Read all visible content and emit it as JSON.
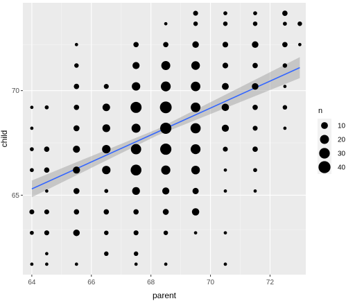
{
  "chart_data": {
    "type": "scatter",
    "xlabel": "parent",
    "ylabel": "child",
    "xlim": [
      63.7,
      73.2
    ],
    "ylim": [
      61.2,
      74.2
    ],
    "xticks": [
      64,
      66,
      68,
      70,
      72
    ],
    "yticks": [
      65,
      70
    ],
    "grid": true,
    "legend": {
      "title": "n",
      "placement": "right",
      "entries": [
        {
          "label": "10",
          "value": 10
        },
        {
          "label": "20",
          "value": 20
        },
        {
          "label": "30",
          "value": 30
        },
        {
          "label": "40",
          "value": 40
        }
      ]
    },
    "points": [
      {
        "x": 64.0,
        "y": 61.7,
        "n": 1
      },
      {
        "x": 64.0,
        "y": 63.2,
        "n": 2
      },
      {
        "x": 64.0,
        "y": 64.2,
        "n": 4
      },
      {
        "x": 64.0,
        "y": 66.2,
        "n": 2
      },
      {
        "x": 64.0,
        "y": 67.2,
        "n": 2
      },
      {
        "x": 64.0,
        "y": 68.2,
        "n": 1
      },
      {
        "x": 64.0,
        "y": 69.2,
        "n": 1
      },
      {
        "x": 64.5,
        "y": 61.7,
        "n": 1
      },
      {
        "x": 64.5,
        "y": 62.2,
        "n": 1
      },
      {
        "x": 64.5,
        "y": 63.2,
        "n": 4
      },
      {
        "x": 64.5,
        "y": 64.2,
        "n": 4
      },
      {
        "x": 64.5,
        "y": 65.2,
        "n": 1
      },
      {
        "x": 64.5,
        "y": 66.2,
        "n": 5
      },
      {
        "x": 64.5,
        "y": 67.2,
        "n": 5
      },
      {
        "x": 64.5,
        "y": 69.2,
        "n": 2
      },
      {
        "x": 65.5,
        "y": 61.7,
        "n": 1
      },
      {
        "x": 65.5,
        "y": 63.2,
        "n": 9
      },
      {
        "x": 65.5,
        "y": 64.2,
        "n": 5
      },
      {
        "x": 65.5,
        "y": 65.2,
        "n": 7
      },
      {
        "x": 65.5,
        "y": 66.2,
        "n": 11
      },
      {
        "x": 65.5,
        "y": 67.2,
        "n": 11
      },
      {
        "x": 65.5,
        "y": 68.2,
        "n": 7
      },
      {
        "x": 65.5,
        "y": 69.2,
        "n": 5
      },
      {
        "x": 65.5,
        "y": 70.2,
        "n": 5
      },
      {
        "x": 65.5,
        "y": 71.2,
        "n": 3
      },
      {
        "x": 65.5,
        "y": 72.2,
        "n": 1
      },
      {
        "x": 66.5,
        "y": 62.2,
        "n": 3
      },
      {
        "x": 66.5,
        "y": 63.2,
        "n": 3
      },
      {
        "x": 66.5,
        "y": 64.2,
        "n": 5
      },
      {
        "x": 66.5,
        "y": 65.2,
        "n": 2
      },
      {
        "x": 66.5,
        "y": 66.2,
        "n": 17
      },
      {
        "x": 66.5,
        "y": 67.2,
        "n": 17
      },
      {
        "x": 66.5,
        "y": 68.2,
        "n": 14
      },
      {
        "x": 66.5,
        "y": 69.2,
        "n": 13
      },
      {
        "x": 66.5,
        "y": 70.2,
        "n": 4
      },
      {
        "x": 67.5,
        "y": 61.7,
        "n": 1
      },
      {
        "x": 67.5,
        "y": 62.2,
        "n": 3
      },
      {
        "x": 67.5,
        "y": 63.2,
        "n": 4
      },
      {
        "x": 67.5,
        "y": 64.2,
        "n": 5
      },
      {
        "x": 67.5,
        "y": 65.2,
        "n": 14
      },
      {
        "x": 67.5,
        "y": 66.2,
        "n": 31
      },
      {
        "x": 67.5,
        "y": 67.2,
        "n": 28
      },
      {
        "x": 67.5,
        "y": 68.2,
        "n": 20
      },
      {
        "x": 67.5,
        "y": 69.2,
        "n": 33
      },
      {
        "x": 67.5,
        "y": 70.2,
        "n": 17
      },
      {
        "x": 67.5,
        "y": 71.2,
        "n": 11
      },
      {
        "x": 67.5,
        "y": 72.2,
        "n": 5
      },
      {
        "x": 68.5,
        "y": 61.7,
        "n": 1
      },
      {
        "x": 68.5,
        "y": 63.2,
        "n": 3
      },
      {
        "x": 68.5,
        "y": 64.2,
        "n": 7
      },
      {
        "x": 68.5,
        "y": 65.2,
        "n": 11
      },
      {
        "x": 68.5,
        "y": 66.2,
        "n": 21
      },
      {
        "x": 68.5,
        "y": 67.2,
        "n": 34
      },
      {
        "x": 68.5,
        "y": 68.2,
        "n": 34
      },
      {
        "x": 68.5,
        "y": 69.2,
        "n": 38
      },
      {
        "x": 68.5,
        "y": 70.2,
        "n": 25
      },
      {
        "x": 68.5,
        "y": 71.2,
        "n": 20
      },
      {
        "x": 68.5,
        "y": 72.2,
        "n": 5
      },
      {
        "x": 68.5,
        "y": 73.2,
        "n": 1
      },
      {
        "x": 69.5,
        "y": 63.2,
        "n": 1
      },
      {
        "x": 69.5,
        "y": 64.2,
        "n": 12
      },
      {
        "x": 69.5,
        "y": 65.2,
        "n": 8
      },
      {
        "x": 69.5,
        "y": 66.2,
        "n": 18
      },
      {
        "x": 69.5,
        "y": 67.2,
        "n": 25
      },
      {
        "x": 69.5,
        "y": 68.2,
        "n": 27
      },
      {
        "x": 69.5,
        "y": 69.2,
        "n": 24
      },
      {
        "x": 69.5,
        "y": 70.2,
        "n": 23
      },
      {
        "x": 69.5,
        "y": 71.2,
        "n": 18
      },
      {
        "x": 69.5,
        "y": 72.2,
        "n": 9
      },
      {
        "x": 69.5,
        "y": 73.2,
        "n": 3
      },
      {
        "x": 69.5,
        "y": 73.7,
        "n": 4
      },
      {
        "x": 70.5,
        "y": 61.7,
        "n": 1
      },
      {
        "x": 70.5,
        "y": 63.2,
        "n": 1
      },
      {
        "x": 70.5,
        "y": 65.2,
        "n": 1
      },
      {
        "x": 70.5,
        "y": 66.2,
        "n": 1
      },
      {
        "x": 70.5,
        "y": 67.2,
        "n": 4
      },
      {
        "x": 70.5,
        "y": 68.2,
        "n": 11
      },
      {
        "x": 70.5,
        "y": 69.2,
        "n": 12
      },
      {
        "x": 70.5,
        "y": 70.2,
        "n": 10
      },
      {
        "x": 70.5,
        "y": 71.2,
        "n": 6
      },
      {
        "x": 70.5,
        "y": 72.2,
        "n": 6
      },
      {
        "x": 70.5,
        "y": 73.2,
        "n": 3
      },
      {
        "x": 70.5,
        "y": 73.7,
        "n": 2
      },
      {
        "x": 71.5,
        "y": 65.2,
        "n": 1
      },
      {
        "x": 71.5,
        "y": 66.2,
        "n": 2
      },
      {
        "x": 71.5,
        "y": 67.2,
        "n": 5
      },
      {
        "x": 71.5,
        "y": 68.2,
        "n": 4
      },
      {
        "x": 71.5,
        "y": 69.2,
        "n": 5
      },
      {
        "x": 71.5,
        "y": 70.2,
        "n": 9
      },
      {
        "x": 71.5,
        "y": 71.2,
        "n": 5
      },
      {
        "x": 71.5,
        "y": 72.2,
        "n": 9
      },
      {
        "x": 71.5,
        "y": 73.2,
        "n": 3
      },
      {
        "x": 71.5,
        "y": 73.7,
        "n": 2
      },
      {
        "x": 72.5,
        "y": 68.2,
        "n": 1
      },
      {
        "x": 72.5,
        "y": 69.2,
        "n": 3
      },
      {
        "x": 72.5,
        "y": 70.2,
        "n": 1
      },
      {
        "x": 72.5,
        "y": 71.2,
        "n": 3
      },
      {
        "x": 72.5,
        "y": 72.2,
        "n": 5
      },
      {
        "x": 72.5,
        "y": 73.2,
        "n": 2
      },
      {
        "x": 72.5,
        "y": 73.7,
        "n": 5
      },
      {
        "x": 73.0,
        "y": 72.2,
        "n": 1
      },
      {
        "x": 73.0,
        "y": 73.2,
        "n": 3
      }
    ],
    "smooth": {
      "method": "lm",
      "x": [
        64.0,
        73.0
      ],
      "y": [
        65.3,
        71.1
      ],
      "se_lower": [
        64.9,
        70.6
      ],
      "se_upper": [
        65.7,
        71.6
      ],
      "se_mid_lower": 67.85,
      "se_mid_upper": 68.15,
      "x_mid": 68.2,
      "line_color": "#3366ff",
      "band_color": "#999999"
    },
    "colors": {
      "panel": "#ebebeb",
      "grid_major": "#ffffff",
      "grid_minor": "#f5f5f5",
      "point": "#000000"
    }
  }
}
